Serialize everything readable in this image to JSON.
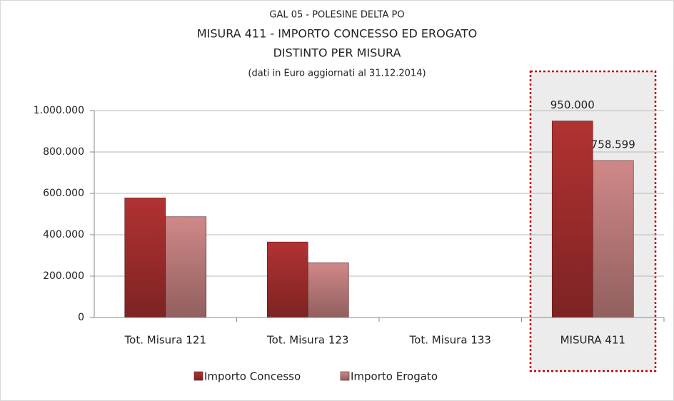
{
  "chart_data": {
    "type": "bar",
    "title": [
      "GAL 05 - POLESINE DELTA PO",
      "MISURA 411 - IMPORTO CONCESSO ED EROGATO",
      "DISTINTO PER MISURA"
    ],
    "subtitle": "(dati in Euro aggiornati al 31.12.2014)",
    "categories": [
      "Tot. Misura 121",
      "Tot. Misura 123",
      "Tot. Misura 133",
      "MISURA 411"
    ],
    "series": [
      {
        "name": "Importo Concesso",
        "color": "#b23232",
        "values": [
          578000,
          365000,
          null,
          950000
        ],
        "value_labels": [
          null,
          null,
          null,
          "950.000"
        ]
      },
      {
        "name": "Importo Erogato",
        "color": "#d08888",
        "values": [
          487000,
          265000,
          null,
          758599
        ],
        "value_labels": [
          null,
          null,
          null,
          "758.599"
        ]
      }
    ],
    "ylim": [
      0,
      1000000
    ],
    "yticks": [
      0,
      {
        "value": 200000,
        "label": "200.000"
      },
      {
        "value": 400000,
        "label": "400.000"
      },
      {
        "value": 600000,
        "label": "600.000"
      },
      {
        "value": 800000,
        "label": "800.000"
      },
      {
        "value": 1000000,
        "label": "1.000.000"
      }
    ],
    "grid": true
  }
}
